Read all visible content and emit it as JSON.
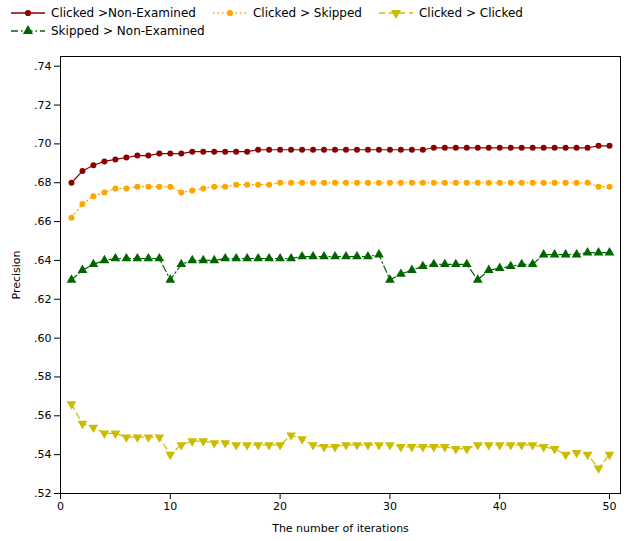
{
  "chart_data": {
    "type": "line",
    "xlabel": "The number of iterations",
    "ylabel": "Precision",
    "x": [
      1,
      2,
      3,
      4,
      5,
      6,
      7,
      8,
      9,
      10,
      11,
      12,
      13,
      14,
      15,
      16,
      17,
      18,
      19,
      20,
      21,
      22,
      23,
      24,
      25,
      26,
      27,
      28,
      29,
      30,
      31,
      32,
      33,
      34,
      35,
      36,
      37,
      38,
      39,
      40,
      41,
      42,
      43,
      44,
      45,
      46,
      47,
      48,
      49,
      50
    ],
    "xlim": [
      0,
      51
    ],
    "xticks": [
      0,
      10,
      20,
      30,
      40,
      50
    ],
    "ylim": [
      0.52,
      0.745
    ],
    "yticks": [
      {
        "value": 0.52,
        "label": ".52"
      },
      {
        "value": 0.54,
        "label": ".54"
      },
      {
        "value": 0.56,
        "label": ".56"
      },
      {
        "value": 0.58,
        "label": ".58"
      },
      {
        "value": 0.6,
        "label": ".60"
      },
      {
        "value": 0.62,
        "label": ".62"
      },
      {
        "value": 0.64,
        "label": ".64"
      },
      {
        "value": 0.66,
        "label": ".66"
      },
      {
        "value": 0.68,
        "label": ".68"
      },
      {
        "value": 0.7,
        "label": ".70"
      },
      {
        "value": 0.72,
        "label": ".72"
      },
      {
        "value": 0.74,
        "label": ".74"
      }
    ],
    "grid": false,
    "legend": "upper left",
    "series": [
      {
        "name": "Clicked >Non-Examined",
        "color": "#8B0000",
        "marker": "circle",
        "line_style": "solid",
        "values": [
          0.68,
          0.686,
          0.689,
          0.691,
          0.692,
          0.693,
          0.694,
          0.694,
          0.695,
          0.695,
          0.695,
          0.696,
          0.696,
          0.696,
          0.696,
          0.696,
          0.696,
          0.697,
          0.697,
          0.697,
          0.697,
          0.697,
          0.697,
          0.697,
          0.697,
          0.697,
          0.697,
          0.697,
          0.697,
          0.697,
          0.697,
          0.697,
          0.697,
          0.698,
          0.698,
          0.698,
          0.698,
          0.698,
          0.698,
          0.698,
          0.698,
          0.698,
          0.698,
          0.698,
          0.698,
          0.698,
          0.698,
          0.698,
          0.699,
          0.699
        ]
      },
      {
        "name": "Clicked > Skipped",
        "color": "#FFA500",
        "marker": "circle",
        "line_style": "dotted",
        "values": [
          0.662,
          0.669,
          0.673,
          0.675,
          0.677,
          0.677,
          0.678,
          0.678,
          0.678,
          0.678,
          0.675,
          0.676,
          0.677,
          0.678,
          0.678,
          0.679,
          0.679,
          0.679,
          0.679,
          0.68,
          0.68,
          0.68,
          0.68,
          0.68,
          0.68,
          0.68,
          0.68,
          0.68,
          0.68,
          0.68,
          0.68,
          0.68,
          0.68,
          0.68,
          0.68,
          0.68,
          0.68,
          0.68,
          0.68,
          0.68,
          0.68,
          0.68,
          0.68,
          0.68,
          0.68,
          0.68,
          0.68,
          0.68,
          0.678,
          0.678
        ]
      },
      {
        "name": "Clicked > Clicked",
        "color": "#CCBB00",
        "marker": "triangle-down",
        "line_style": "dashed",
        "values": [
          0.566,
          0.556,
          0.554,
          0.551,
          0.551,
          0.549,
          0.549,
          0.549,
          0.549,
          0.54,
          0.545,
          0.547,
          0.547,
          0.546,
          0.546,
          0.545,
          0.545,
          0.545,
          0.545,
          0.545,
          0.55,
          0.548,
          0.545,
          0.544,
          0.544,
          0.545,
          0.545,
          0.545,
          0.545,
          0.545,
          0.544,
          0.544,
          0.544,
          0.544,
          0.544,
          0.543,
          0.543,
          0.545,
          0.545,
          0.545,
          0.545,
          0.545,
          0.545,
          0.544,
          0.543,
          0.54,
          0.541,
          0.54,
          0.533,
          0.54
        ]
      },
      {
        "name": "Skipped > Non-Examined",
        "color": "#006400",
        "marker": "triangle-up",
        "line_style": "dashdot",
        "values": [
          0.63,
          0.635,
          0.638,
          0.64,
          0.641,
          0.641,
          0.641,
          0.641,
          0.641,
          0.63,
          0.638,
          0.64,
          0.64,
          0.64,
          0.641,
          0.641,
          0.641,
          0.641,
          0.641,
          0.641,
          0.641,
          0.642,
          0.642,
          0.642,
          0.642,
          0.642,
          0.642,
          0.642,
          0.643,
          0.63,
          0.633,
          0.635,
          0.637,
          0.638,
          0.638,
          0.638,
          0.638,
          0.63,
          0.635,
          0.636,
          0.637,
          0.638,
          0.638,
          0.643,
          0.643,
          0.643,
          0.643,
          0.644,
          0.644,
          0.644
        ]
      }
    ]
  }
}
